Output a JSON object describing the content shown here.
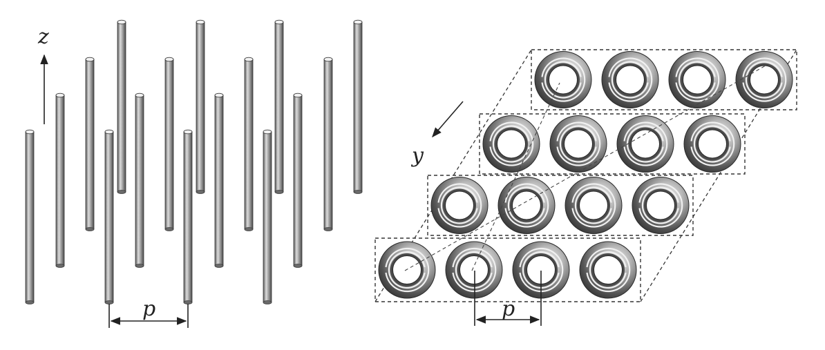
{
  "figure": {
    "left_panel": {
      "name": "wire-medium",
      "axis_label": "z",
      "period_label": "p",
      "rod_count": 16
    },
    "right_panel": {
      "name": "split-ring-resonator-array",
      "axis_label": "y",
      "period_label": "p",
      "layers": 4,
      "rings_per_layer": 4
    },
    "colors": {
      "rod_dark": "#5a5a5a",
      "rod_light": "#d8d8d8",
      "ring_dark": "#3a3a3a",
      "ring_light": "#eeeeee",
      "line": "#222222"
    }
  }
}
